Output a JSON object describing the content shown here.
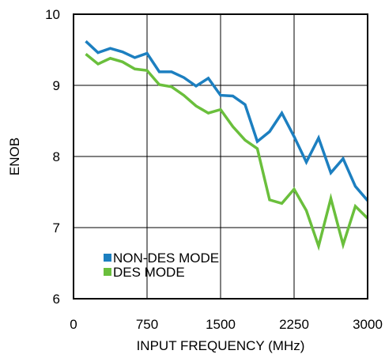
{
  "chart_data": {
    "type": "line",
    "xlabel": "INPUT FREQUENCY (MHz)",
    "ylabel": "ENOB",
    "xlim": [
      0,
      3000
    ],
    "ylim": [
      6,
      10
    ],
    "xticks": [
      0,
      750,
      1500,
      2250,
      3000
    ],
    "yticks": [
      6,
      7,
      8,
      9,
      10
    ],
    "grid": true,
    "legend_position": "bottom-left",
    "series": [
      {
        "name": "NON-DES MODE",
        "color": "#1c7fc0",
        "x": [
          125,
          250,
          375,
          500,
          625,
          750,
          875,
          1000,
          1125,
          1250,
          1375,
          1500,
          1625,
          1750,
          1875,
          2000,
          2125,
          2250,
          2375,
          2500,
          2625,
          2750,
          2875,
          3000
        ],
        "y": [
          9.62,
          9.46,
          9.52,
          9.47,
          9.39,
          9.45,
          9.19,
          9.19,
          9.11,
          8.99,
          9.1,
          8.86,
          8.85,
          8.73,
          8.21,
          8.35,
          8.61,
          8.28,
          7.92,
          8.26,
          7.77,
          7.97,
          7.58,
          7.38
        ]
      },
      {
        "name": "DES MODE",
        "color": "#6abf3c",
        "x": [
          125,
          250,
          375,
          500,
          625,
          750,
          875,
          1000,
          1125,
          1250,
          1375,
          1500,
          1625,
          1750,
          1875,
          2000,
          2125,
          2250,
          2375,
          2500,
          2625,
          2750,
          2875,
          3000
        ],
        "y": [
          9.44,
          9.3,
          9.38,
          9.33,
          9.23,
          9.21,
          9.01,
          8.98,
          8.86,
          8.71,
          8.61,
          8.66,
          8.42,
          8.23,
          8.11,
          7.39,
          7.34,
          7.54,
          7.24,
          6.74,
          7.41,
          6.76,
          7.3,
          7.13
        ]
      }
    ]
  }
}
